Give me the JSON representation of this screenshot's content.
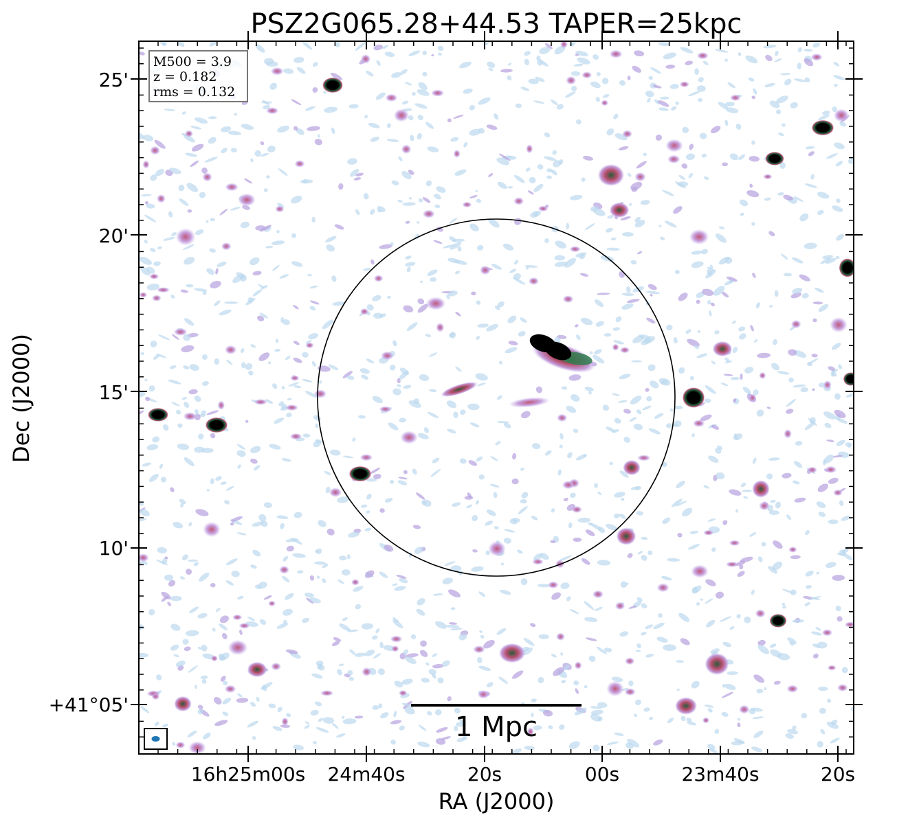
{
  "title": "PSZ2G065.28+44.53 TAPER=25kpc",
  "info_box": {
    "lines": [
      "M500 = 3.9",
      "z = 0.182",
      "rms = 0.132"
    ]
  },
  "axes": {
    "xlabel": "RA (J2000)",
    "ylabel": "Dec (J2000)",
    "x_ticks": [
      "16h25m00s",
      "24m40s",
      "20s",
      "00s",
      "23m40s",
      "20s"
    ],
    "y_ticks": [
      "25'",
      "20'",
      "15'",
      "10'",
      "+41°05'"
    ]
  },
  "scale_bar": {
    "label": "1 Mpc"
  },
  "colors": {
    "faint_emission": "#bcd8ee",
    "low_emission": "#b9a6e0",
    "mid_emission": "#c0587a",
    "high_emission": "#2e7d4f",
    "peak_emission": "#000000",
    "beam": "#1f77b4",
    "frame": "#000000"
  }
}
